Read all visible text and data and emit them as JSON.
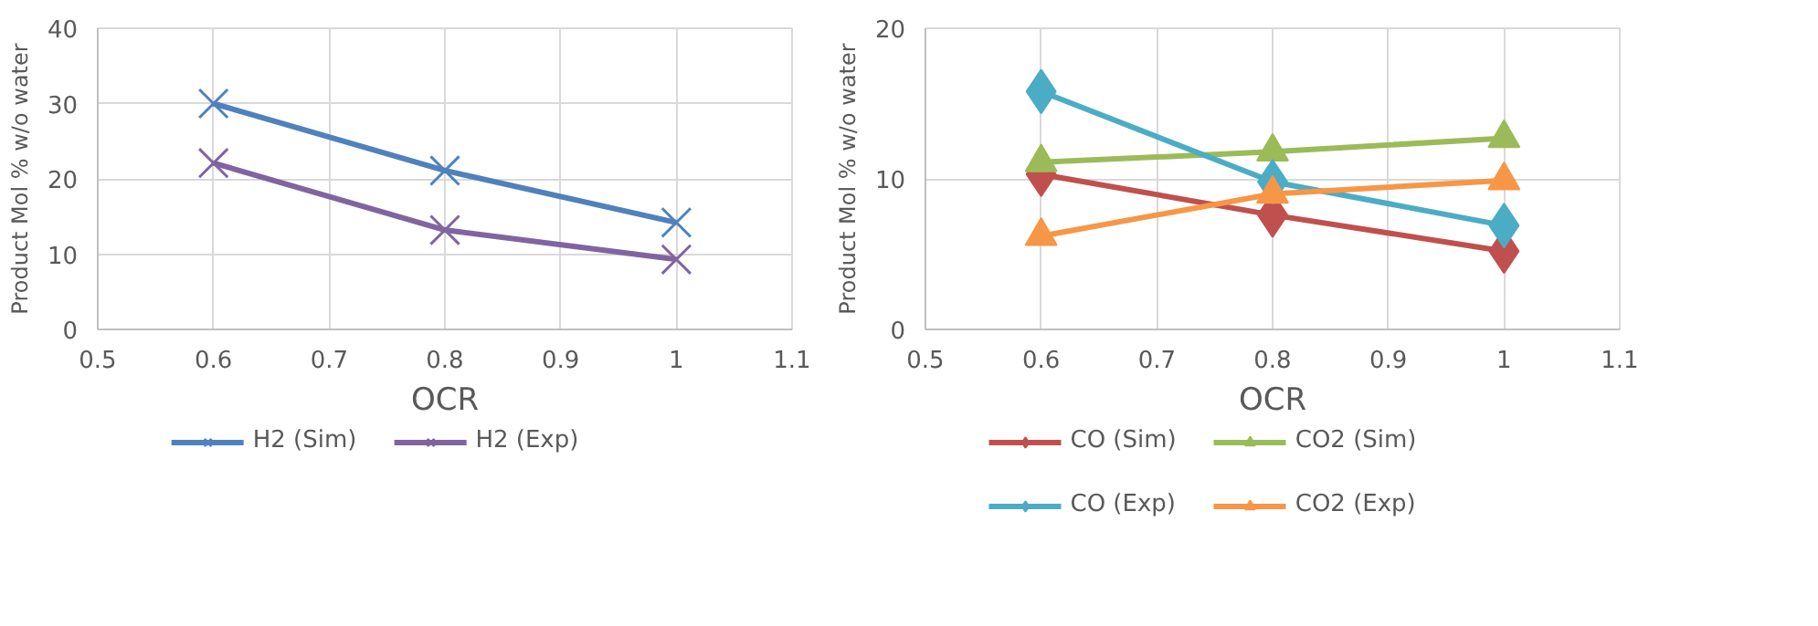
{
  "chart_data": [
    {
      "type": "line",
      "xlabel": "OCR",
      "ylabel": "Product Mol % w/o water",
      "x": [
        0.6,
        0.8,
        1.0
      ],
      "xlim": [
        0.5,
        1.1
      ],
      "xticks": [
        0.5,
        0.6,
        0.7,
        0.8,
        0.9,
        1,
        1.1
      ],
      "ylim": [
        0,
        40
      ],
      "yticks": [
        0,
        10,
        20,
        30,
        40
      ],
      "grid": true,
      "legend": "bottom",
      "marker": "cross",
      "series": [
        {
          "name": "H2 (Sim)",
          "color": "#4f81bd",
          "values": [
            30.0,
            21.1,
            14.2
          ]
        },
        {
          "name": "H2 (Exp)",
          "color": "#8064a2",
          "values": [
            22.1,
            13.2,
            9.3
          ]
        }
      ]
    },
    {
      "type": "line",
      "xlabel": "OCR",
      "ylabel": "Product Mol % w/o water",
      "x": [
        0.6,
        0.8,
        1.0
      ],
      "xlim": [
        0.5,
        1.1
      ],
      "xticks": [
        0.5,
        0.6,
        0.7,
        0.8,
        0.9,
        1,
        1.1
      ],
      "ylim": [
        0,
        20
      ],
      "yticks": [
        0,
        10,
        20
      ],
      "grid": true,
      "legend": "bottom",
      "series": [
        {
          "name": "CO (Sim)",
          "color": "#c0504d",
          "marker": "diamond",
          "values": [
            10.3,
            7.6,
            5.2
          ]
        },
        {
          "name": "CO2 (Sim)",
          "color": "#9bbb59",
          "marker": "triangle",
          "values": [
            11.1,
            11.8,
            12.7
          ]
        },
        {
          "name": "CO (Exp)",
          "color": "#4bacc6",
          "marker": "diamond",
          "values": [
            15.8,
            9.8,
            6.9
          ]
        },
        {
          "name": "CO2 (Exp)",
          "color": "#f79646",
          "marker": "triangle",
          "values": [
            6.2,
            9.0,
            9.9
          ]
        }
      ]
    }
  ]
}
